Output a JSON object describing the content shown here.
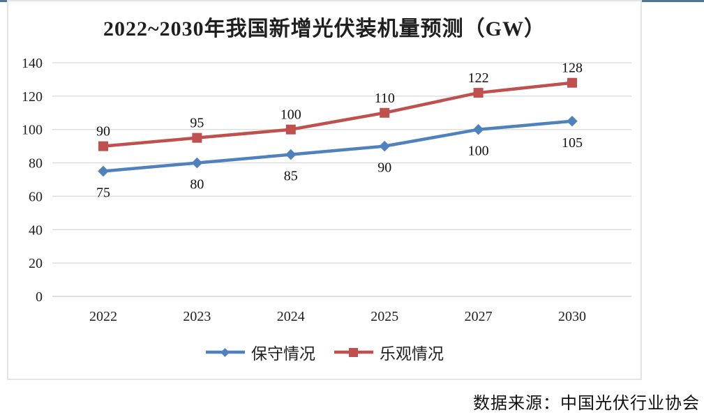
{
  "page": {
    "source_note": "数据来源：中国光伏行业协会",
    "top_rule_color": "#4e7694",
    "frame_border_color": "#e4e4e4"
  },
  "chart_data": {
    "type": "line",
    "title": "2022~2030年我国新增光伏装机量预测（GW）",
    "categories": [
      "2022",
      "2023",
      "2024",
      "2025",
      "2027",
      "2030"
    ],
    "series": [
      {
        "name": "保守情况",
        "values": [
          75,
          80,
          85,
          90,
          100,
          105
        ],
        "color": "#4F81BD",
        "marker": "diamond",
        "label_position": "below"
      },
      {
        "name": "乐观情况",
        "values": [
          90,
          95,
          100,
          110,
          122,
          128
        ],
        "color": "#C0504D",
        "marker": "square",
        "label_position": "above"
      }
    ],
    "xlabel": "",
    "ylabel": "",
    "ylim": [
      0,
      140
    ],
    "ytick_step": 20,
    "grid": "horizontal",
    "gridline_color": "#d9d9d9",
    "axis_line_color": "#c9c9c9",
    "legend_position": "bottom",
    "text_color": "#1f1f1f"
  }
}
